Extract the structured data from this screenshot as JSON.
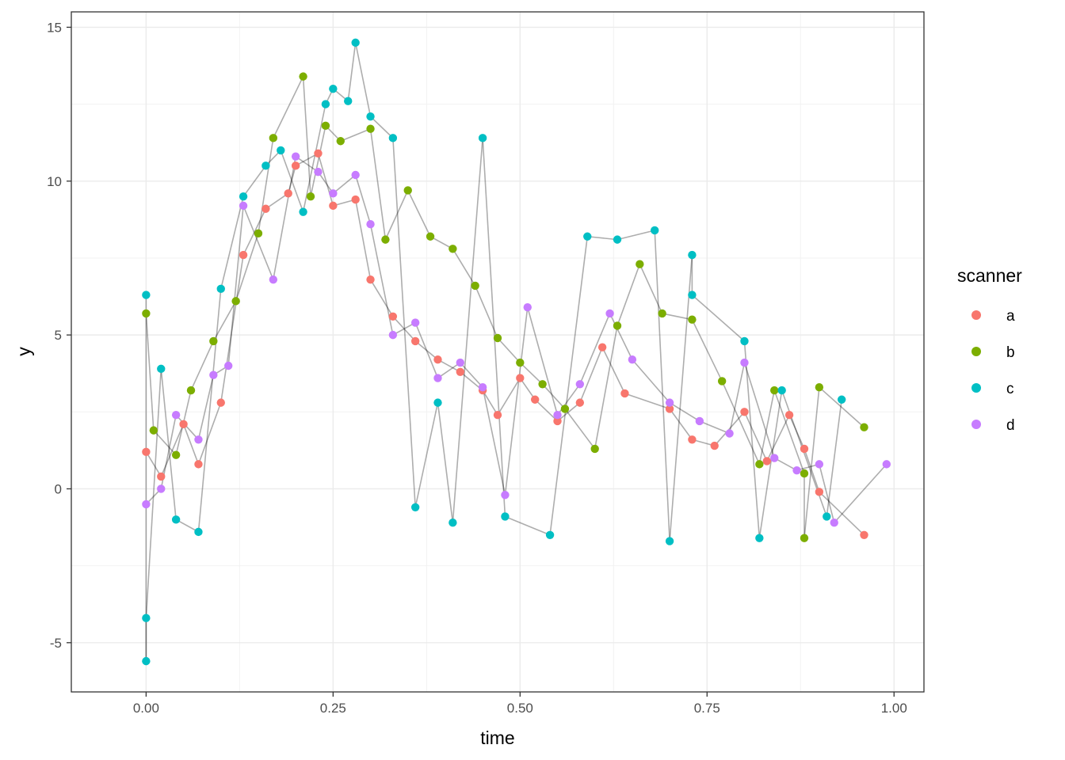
{
  "chart_data": {
    "type": "line-scatter",
    "title": "",
    "xlabel": "time",
    "ylabel": "y",
    "xlim": [
      -0.1,
      1.04
    ],
    "ylim": [
      -6.6,
      15.5
    ],
    "x_ticks": [
      0.0,
      0.25,
      0.5,
      0.75,
      1.0
    ],
    "x_tick_labels": [
      "0.00",
      "0.25",
      "0.50",
      "0.75",
      "1.00"
    ],
    "y_ticks": [
      -5,
      0,
      5,
      10,
      15
    ],
    "y_tick_labels": [
      "-5",
      "0",
      "5",
      "10",
      "15"
    ],
    "grid": true,
    "legend": {
      "title": "scanner",
      "position": "right",
      "entries": [
        {
          "name": "a",
          "color": "#F8766D"
        },
        {
          "name": "b",
          "color": "#7CAE00"
        },
        {
          "name": "c",
          "color": "#00BFC4"
        },
        {
          "name": "d",
          "color": "#C77CFF"
        }
      ]
    },
    "line_color": "#000000",
    "series": [
      {
        "name": "a",
        "color": "#F8766D",
        "points": [
          [
            0.0,
            1.2
          ],
          [
            0.02,
            0.4
          ],
          [
            0.05,
            2.1
          ],
          [
            0.07,
            0.8
          ],
          [
            0.1,
            2.8
          ],
          [
            0.13,
            7.6
          ],
          [
            0.16,
            9.1
          ],
          [
            0.19,
            9.6
          ],
          [
            0.2,
            10.5
          ],
          [
            0.23,
            10.9
          ],
          [
            0.25,
            9.2
          ],
          [
            0.28,
            9.4
          ],
          [
            0.3,
            6.8
          ],
          [
            0.33,
            5.6
          ],
          [
            0.36,
            4.8
          ],
          [
            0.39,
            4.2
          ],
          [
            0.42,
            3.8
          ],
          [
            0.45,
            3.2
          ],
          [
            0.47,
            2.4
          ],
          [
            0.5,
            3.6
          ],
          [
            0.52,
            2.9
          ],
          [
            0.55,
            2.2
          ],
          [
            0.58,
            2.8
          ],
          [
            0.61,
            4.6
          ],
          [
            0.64,
            3.1
          ],
          [
            0.7,
            2.6
          ],
          [
            0.73,
            1.6
          ],
          [
            0.76,
            1.4
          ],
          [
            0.8,
            2.5
          ],
          [
            0.83,
            0.9
          ],
          [
            0.86,
            2.4
          ],
          [
            0.88,
            1.3
          ],
          [
            0.9,
            -0.1
          ],
          [
            0.96,
            -1.5
          ]
        ]
      },
      {
        "name": "b",
        "color": "#7CAE00",
        "points": [
          [
            0.0,
            5.7
          ],
          [
            0.01,
            1.9
          ],
          [
            0.04,
            1.1
          ],
          [
            0.06,
            3.2
          ],
          [
            0.09,
            4.8
          ],
          [
            0.12,
            6.1
          ],
          [
            0.15,
            8.3
          ],
          [
            0.17,
            11.4
          ],
          [
            0.21,
            13.4
          ],
          [
            0.22,
            9.5
          ],
          [
            0.24,
            11.8
          ],
          [
            0.26,
            11.3
          ],
          [
            0.3,
            11.7
          ],
          [
            0.32,
            8.1
          ],
          [
            0.35,
            9.7
          ],
          [
            0.38,
            8.2
          ],
          [
            0.41,
            7.8
          ],
          [
            0.44,
            6.6
          ],
          [
            0.47,
            4.9
          ],
          [
            0.5,
            4.1
          ],
          [
            0.53,
            3.4
          ],
          [
            0.56,
            2.6
          ],
          [
            0.6,
            1.3
          ],
          [
            0.63,
            5.3
          ],
          [
            0.66,
            7.3
          ],
          [
            0.69,
            5.7
          ],
          [
            0.73,
            5.5
          ],
          [
            0.77,
            3.5
          ],
          [
            0.82,
            0.8
          ],
          [
            0.84,
            3.2
          ],
          [
            0.88,
            0.5
          ],
          [
            0.9,
            3.3
          ],
          [
            0.96,
            2.0
          ],
          [
            0.88,
            -1.6
          ]
        ]
      },
      {
        "name": "c",
        "color": "#00BFC4",
        "points": [
          [
            0.0,
            6.3
          ],
          [
            0.0,
            -5.6
          ],
          [
            0.0,
            -4.2
          ],
          [
            0.02,
            3.9
          ],
          [
            0.04,
            -1.0
          ],
          [
            0.07,
            -1.4
          ],
          [
            0.1,
            6.5
          ],
          [
            0.13,
            9.5
          ],
          [
            0.16,
            10.5
          ],
          [
            0.18,
            11.0
          ],
          [
            0.21,
            9.0
          ],
          [
            0.24,
            12.5
          ],
          [
            0.25,
            13.0
          ],
          [
            0.28,
            14.5
          ],
          [
            0.27,
            12.6
          ],
          [
            0.3,
            12.1
          ],
          [
            0.33,
            11.4
          ],
          [
            0.36,
            -0.6
          ],
          [
            0.39,
            2.8
          ],
          [
            0.41,
            -1.1
          ],
          [
            0.45,
            11.4
          ],
          [
            0.48,
            -0.9
          ],
          [
            0.54,
            -1.5
          ],
          [
            0.59,
            8.2
          ],
          [
            0.63,
            8.1
          ],
          [
            0.68,
            8.4
          ],
          [
            0.7,
            -1.7
          ],
          [
            0.73,
            7.6
          ],
          [
            0.73,
            6.3
          ],
          [
            0.8,
            4.8
          ],
          [
            0.82,
            -1.6
          ],
          [
            0.85,
            3.2
          ],
          [
            0.91,
            -0.9
          ],
          [
            0.93,
            2.9
          ]
        ]
      },
      {
        "name": "d",
        "color": "#C77CFF",
        "points": [
          [
            0.0,
            -0.5
          ],
          [
            0.02,
            0.0
          ],
          [
            0.04,
            2.4
          ],
          [
            0.07,
            1.6
          ],
          [
            0.09,
            3.7
          ],
          [
            0.11,
            4.0
          ],
          [
            0.13,
            9.2
          ],
          [
            0.17,
            6.8
          ],
          [
            0.2,
            10.8
          ],
          [
            0.23,
            10.3
          ],
          [
            0.25,
            9.6
          ],
          [
            0.28,
            10.2
          ],
          [
            0.3,
            8.6
          ],
          [
            0.33,
            5.0
          ],
          [
            0.36,
            5.4
          ],
          [
            0.39,
            3.6
          ],
          [
            0.42,
            4.1
          ],
          [
            0.45,
            3.3
          ],
          [
            0.48,
            -0.2
          ],
          [
            0.51,
            5.9
          ],
          [
            0.55,
            2.4
          ],
          [
            0.58,
            3.4
          ],
          [
            0.62,
            5.7
          ],
          [
            0.65,
            4.2
          ],
          [
            0.7,
            2.8
          ],
          [
            0.74,
            2.2
          ],
          [
            0.78,
            1.8
          ],
          [
            0.8,
            4.1
          ],
          [
            0.84,
            1.0
          ],
          [
            0.87,
            0.6
          ],
          [
            0.9,
            0.8
          ],
          [
            0.92,
            -1.1
          ],
          [
            0.99,
            0.8
          ]
        ]
      }
    ]
  }
}
